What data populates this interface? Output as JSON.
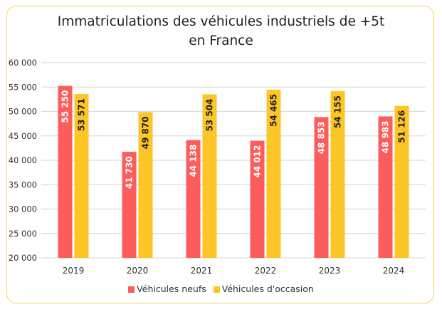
{
  "chart_data": {
    "type": "bar",
    "title": [
      "Immatriculations des véhicules industriels de +5t",
      "en France"
    ],
    "categories": [
      "2019",
      "2020",
      "2021",
      "2022",
      "2023",
      "2024"
    ],
    "series": [
      {
        "name": "Véhicules neufs",
        "color": "#fd5c5c",
        "values": [
          55250,
          41730,
          44138,
          44012,
          48853,
          48983
        ],
        "labels": [
          "55 250",
          "41 730",
          "44 138",
          "44 012",
          "48 853",
          "48 983"
        ],
        "label_color": "#ffffff"
      },
      {
        "name": "Véhicules d'occasion",
        "color": "#fdc626",
        "values": [
          53571,
          49870,
          53504,
          54465,
          54155,
          51126
        ],
        "labels": [
          "53 571",
          "49 870",
          "53 504",
          "54 465",
          "54 155",
          "51 126"
        ],
        "label_color": "#222222"
      }
    ],
    "ylim": [
      20000,
      60000
    ],
    "yticks": [
      20000,
      25000,
      30000,
      35000,
      40000,
      45000,
      50000,
      55000,
      60000
    ],
    "ytick_labels": [
      "20 000",
      "25 000",
      "30 000",
      "35 000",
      "40 000",
      "45 000",
      "50 000",
      "55 000",
      "60 000"
    ],
    "grid": true,
    "legend": "bottom",
    "frame_color": "#f2d35a"
  }
}
